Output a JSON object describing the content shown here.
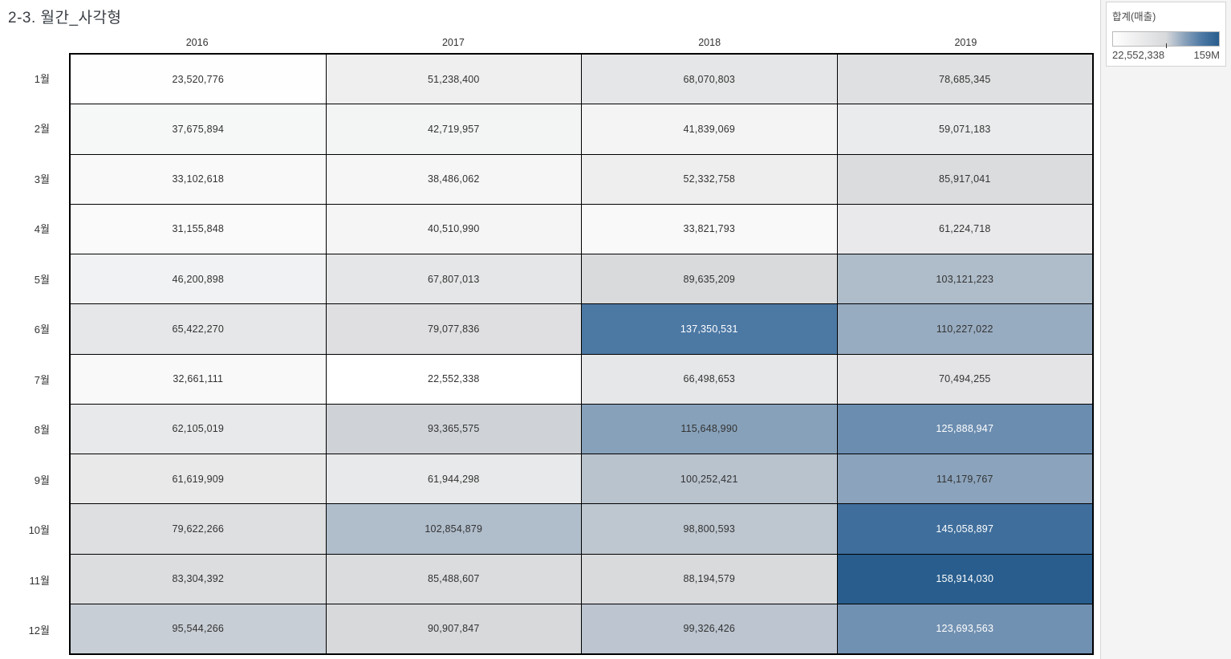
{
  "title": "2-3. 월간_사각형",
  "legend": {
    "title": "합계(매출)",
    "min_label": "22,552,338",
    "max_label": "159M",
    "tick_pct": 50
  },
  "chart_data": {
    "type": "heatmap",
    "title": "2-3. 월간_사각형",
    "measure": "합계(매출)",
    "legend_position": "top-right",
    "columns": [
      "2016",
      "2017",
      "2018",
      "2019"
    ],
    "rows": [
      "1월",
      "2월",
      "3월",
      "4월",
      "5월",
      "6월",
      "7월",
      "8월",
      "9월",
      "10월",
      "11월",
      "12월"
    ],
    "values": [
      [
        23520776,
        51238400,
        68070803,
        78685345
      ],
      [
        37675894,
        42719957,
        41839069,
        59071183
      ],
      [
        33102618,
        38486062,
        52332758,
        85917041
      ],
      [
        31155848,
        40510990,
        33821793,
        61224718
      ],
      [
        46200898,
        67807013,
        89635209,
        103121223
      ],
      [
        65422270,
        79077836,
        137350531,
        110227022
      ],
      [
        32661111,
        22552338,
        66498653,
        70494255
      ],
      [
        62105019,
        93365575,
        115648990,
        125888947
      ],
      [
        61619909,
        61944298,
        100252421,
        114179767
      ],
      [
        79622266,
        102854879,
        98800593,
        145058897
      ],
      [
        83304392,
        85488607,
        88194579,
        158914030
      ],
      [
        95544266,
        90907847,
        99326426,
        123693563
      ]
    ],
    "min": 22552338,
    "max": 158914030,
    "color_scale": {
      "stops": [
        {
          "t": 0,
          "color": "#FFFFFF"
        },
        {
          "t": 0.5,
          "color": "#D8D9DB"
        },
        {
          "t": 0.67,
          "color": "#8CA4BC"
        },
        {
          "t": 0.84,
          "color": "#4C78A4"
        },
        {
          "t": 1,
          "color": "#285D8D"
        }
      ]
    },
    "text_colors": {
      "dark": "#333333",
      "light": "#FFFFFF"
    }
  }
}
